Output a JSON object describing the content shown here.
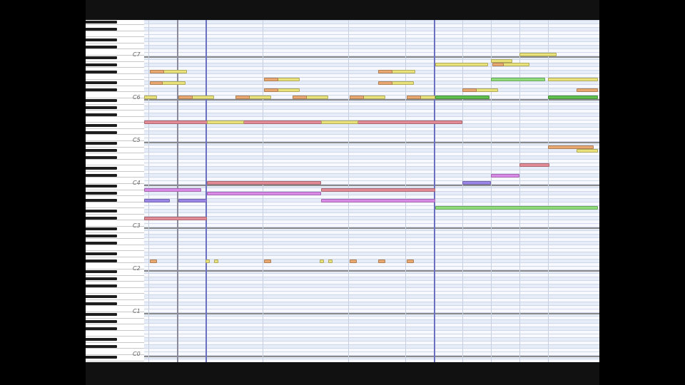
{
  "window": {
    "title": ""
  },
  "keyboard": {
    "octave_labels": [
      "C7",
      "C6",
      "C5",
      "C4",
      "C3",
      "C2",
      "C1",
      "C0"
    ]
  },
  "colors": {
    "yellow": "#e9e27a",
    "orange": "#e8a870",
    "green": "#8fdc7a",
    "darkgreen": "#5fc04e",
    "pink": "#e28a96",
    "magenta": "#d88ae6",
    "purple": "#9a86e6",
    "measure": "#6a6fc0"
  },
  "icons": [
    "piano-keyboard-icon"
  ]
}
